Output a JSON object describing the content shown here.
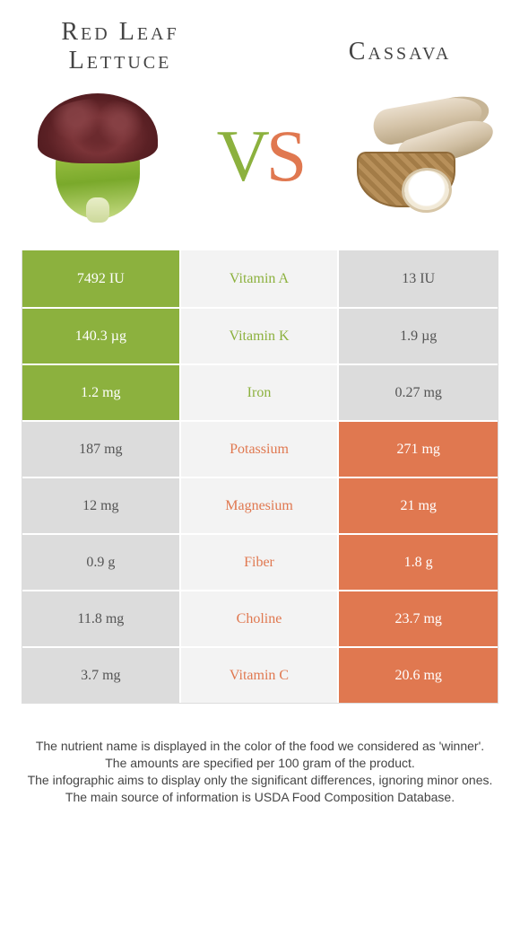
{
  "colors": {
    "green": "#8cb13e",
    "orange": "#e07850",
    "grey": "#dcdcdc",
    "mid_bg": "#f3f3f3",
    "text": "#444444"
  },
  "header": {
    "left_title": "Red Leaf Lettuce",
    "right_title": "Cassava",
    "vs_v": "V",
    "vs_s": "S"
  },
  "rows": [
    {
      "nutrient": "Vitamin A",
      "left": "7492 IU",
      "right": "13 IU",
      "winner": "left"
    },
    {
      "nutrient": "Vitamin K",
      "left": "140.3 µg",
      "right": "1.9 µg",
      "winner": "left"
    },
    {
      "nutrient": "Iron",
      "left": "1.2 mg",
      "right": "0.27 mg",
      "winner": "left"
    },
    {
      "nutrient": "Potassium",
      "left": "187 mg",
      "right": "271 mg",
      "winner": "right"
    },
    {
      "nutrient": "Magnesium",
      "left": "12 mg",
      "right": "21 mg",
      "winner": "right"
    },
    {
      "nutrient": "Fiber",
      "left": "0.9 g",
      "right": "1.8 g",
      "winner": "right"
    },
    {
      "nutrient": "Choline",
      "left": "11.8 mg",
      "right": "23.7 mg",
      "winner": "right"
    },
    {
      "nutrient": "Vitamin C",
      "left": "3.7 mg",
      "right": "20.6 mg",
      "winner": "right"
    }
  ],
  "footer": {
    "line1": "The nutrient name is displayed in the color of the food we considered as 'winner'.",
    "line2": "The amounts are specified per 100 gram of the product.",
    "line3": "The infographic aims to display only the significant differences, ignoring minor ones.",
    "line4": "The main source of information is USDA Food Composition Database."
  }
}
